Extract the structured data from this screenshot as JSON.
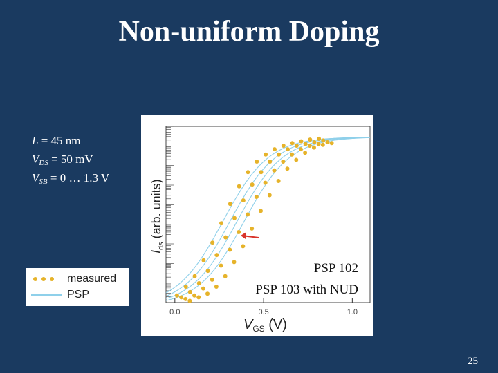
{
  "slide": {
    "title": "Non-uniform Doping",
    "page_number": "25",
    "params": [
      {
        "var": "L",
        "sub": "",
        "rest": " = 45 nm"
      },
      {
        "var": "V",
        "sub": "DS",
        "rest": " = 50 mV"
      },
      {
        "var": "V",
        "sub": "SB",
        "rest": " = 0 … 1.3 V"
      }
    ]
  },
  "legend": {
    "measured_label": "measured",
    "model_label": "PSP"
  },
  "colors": {
    "background": "#1a3a60",
    "measured": "#e6b32a",
    "model": "#8fd0ea",
    "arrow": "#d9342b"
  },
  "chart_data": {
    "type": "line",
    "xlabel_main": "V",
    "xlabel_sub": "GS",
    "xlabel_unit": " (V)",
    "ylabel_main": "I",
    "ylabel_sub": "ds",
    "ylabel_unit": " (arb. units)",
    "xlim": [
      -0.05,
      1.1
    ],
    "ylim": [
      0,
      1
    ],
    "x_ticks": [
      "0.0",
      "0.5",
      "1.0"
    ],
    "x_tick_values": [
      0.0,
      0.5,
      1.0
    ],
    "y_log_scale": true,
    "annotations": [
      "PSP 102",
      "PSP 103 with NUD"
    ],
    "series_curves": [
      {
        "vth": 0.02,
        "measured_y": [
          0.04,
          0.09,
          0.15,
          0.24,
          0.34,
          0.45,
          0.56,
          0.66,
          0.74,
          0.8,
          0.84,
          0.87,
          0.89,
          0.905,
          0.915,
          0.925,
          0.93
        ]
      },
      {
        "vth": 0.06,
        "measured_y": [
          0.03,
          0.06,
          0.11,
          0.18,
          0.27,
          0.37,
          0.48,
          0.58,
          0.67,
          0.74,
          0.8,
          0.84,
          0.87,
          0.89,
          0.9,
          0.91,
          0.92
        ]
      },
      {
        "vth": 0.1,
        "measured_y": [
          0.02,
          0.04,
          0.08,
          0.13,
          0.21,
          0.3,
          0.4,
          0.5,
          0.6,
          0.68,
          0.75,
          0.8,
          0.84,
          0.87,
          0.89,
          0.9,
          0.91
        ]
      },
      {
        "vth": 0.14,
        "measured_y": [
          0.01,
          0.03,
          0.05,
          0.09,
          0.15,
          0.23,
          0.32,
          0.42,
          0.52,
          0.61,
          0.69,
          0.76,
          0.81,
          0.85,
          0.88,
          0.895,
          0.905
        ]
      }
    ],
    "measured_x": [
      0.0,
      0.05,
      0.1,
      0.15,
      0.2,
      0.25,
      0.3,
      0.35,
      0.4,
      0.45,
      0.5,
      0.55,
      0.6,
      0.65,
      0.7,
      0.75,
      0.8
    ]
  }
}
